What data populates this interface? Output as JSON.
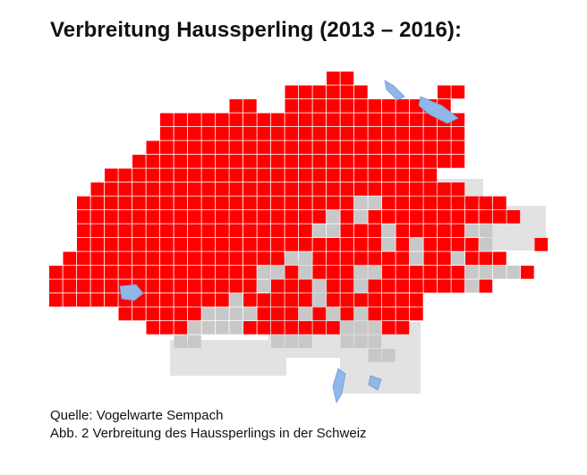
{
  "title": "Verbreitung Haussperling (2013 – 2016):",
  "caption": {
    "source": "Quelle: Vogelwarte Sempach",
    "figure": "Abb. 2 Verbreitung des Haussperlings in  der Schweiz"
  },
  "colors": {
    "occupied": "#ff0000",
    "relief": "#c8c8c8",
    "lake": "#8fb8e8",
    "grid_line": "#ffffff"
  }
}
